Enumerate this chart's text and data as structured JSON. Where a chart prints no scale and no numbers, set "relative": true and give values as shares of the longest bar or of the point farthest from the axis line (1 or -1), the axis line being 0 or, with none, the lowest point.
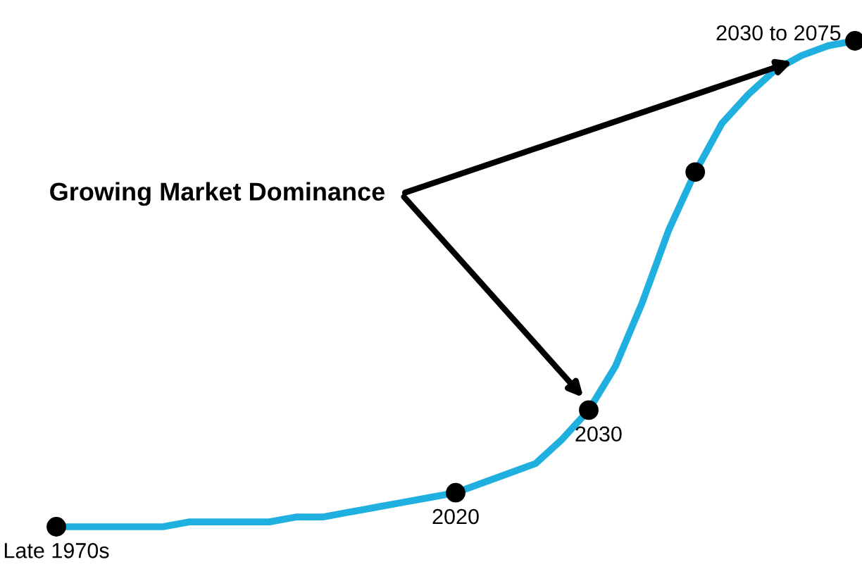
{
  "chart_data": {
    "type": "line",
    "relative": true,
    "categories": [
      null,
      null,
      null,
      null,
      null,
      null,
      null,
      null,
      null,
      null,
      null,
      null,
      null,
      null,
      null,
      null,
      null,
      null,
      null,
      null,
      null,
      null,
      null,
      null,
      null,
      null,
      null,
      null,
      null,
      null,
      null
    ],
    "series": [
      {
        "color": "#1fb0e0",
        "values": [
          0,
          0,
          0,
          0,
          0,
          0.01,
          0.01,
          0.01,
          0.01,
          0.02,
          0.02,
          0.03,
          0.04,
          0.05,
          0.06,
          0.07,
          0.09,
          0.11,
          0.13,
          0.18,
          0.24,
          0.33,
          0.46,
          0.61,
          0.73,
          0.83,
          0.89,
          0.94,
          0.97,
          0.99,
          1
        ]
      }
    ],
    "annotations": [
      "Growing Market Dominance",
      {
        "text": "Late 1970s",
        "y": 0
      },
      {
        "text": "2020",
        "y": 0.07
      },
      {
        "text": "2030",
        "y": 0.24
      },
      "2030 to 2075"
    ]
  }
}
